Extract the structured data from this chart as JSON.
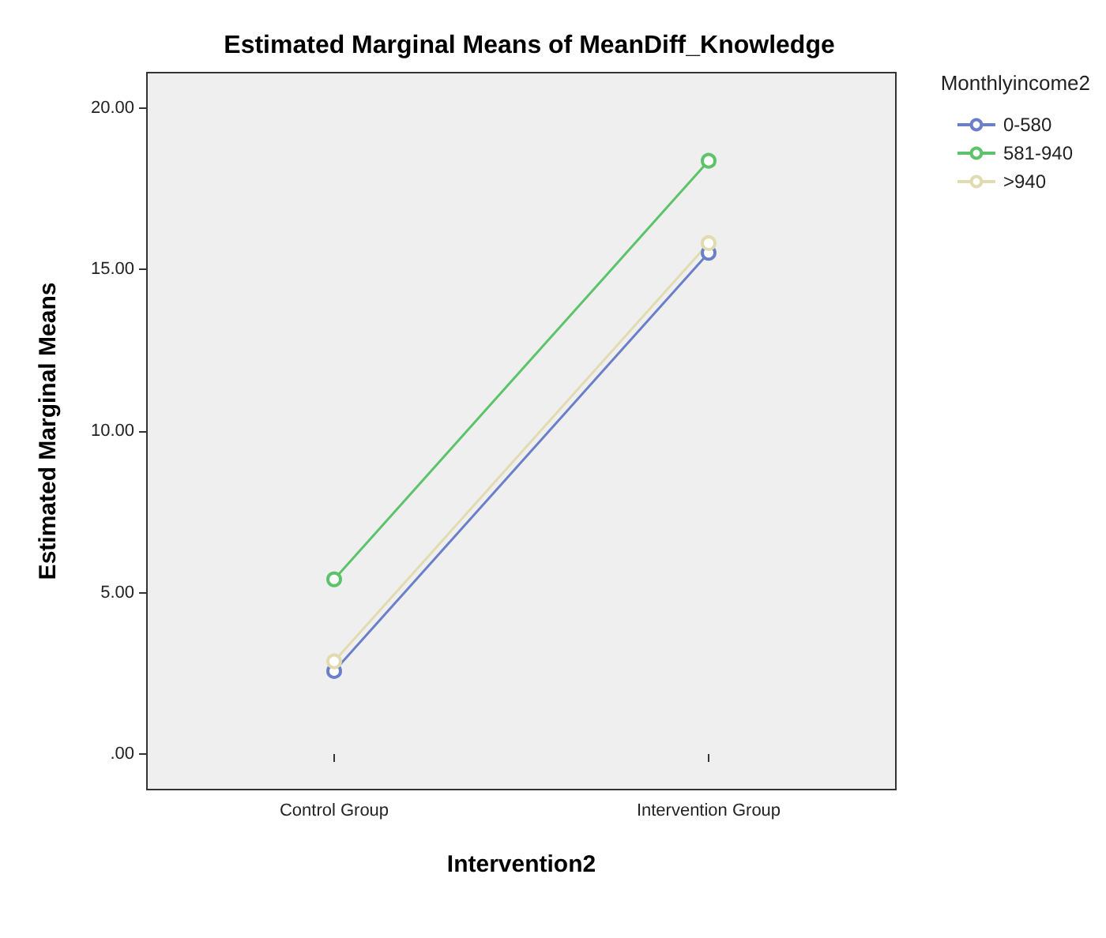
{
  "chart_data": {
    "type": "line",
    "title": "Estimated Marginal Means of MeanDiff_Knowledge",
    "xlabel": "Intervention2",
    "ylabel": "Estimated Marginal Means",
    "legend_title": "Monthlyincome2",
    "categories": [
      "Control Group",
      "Intervention Group"
    ],
    "series": [
      {
        "name": "0-580",
        "color": "#6a7fc8",
        "values": [
          2.57,
          15.52
        ]
      },
      {
        "name": "581-940",
        "color": "#5cc36a",
        "values": [
          5.41,
          18.37
        ]
      },
      {
        "name": ">940",
        "color": "#e0dcb0",
        "values": [
          2.87,
          15.82
        ]
      }
    ],
    "ylim": [
      -1.1,
      21.1
    ],
    "yticks": [
      {
        "value": 0,
        "label": ".00"
      },
      {
        "value": 5,
        "label": "5.00"
      },
      {
        "value": 10,
        "label": "10.00"
      },
      {
        "value": 15,
        "label": "15.00"
      },
      {
        "value": 20,
        "label": "20.00"
      }
    ],
    "grid": false,
    "legend": "top right",
    "marker": "circle",
    "line_style": "solid"
  }
}
